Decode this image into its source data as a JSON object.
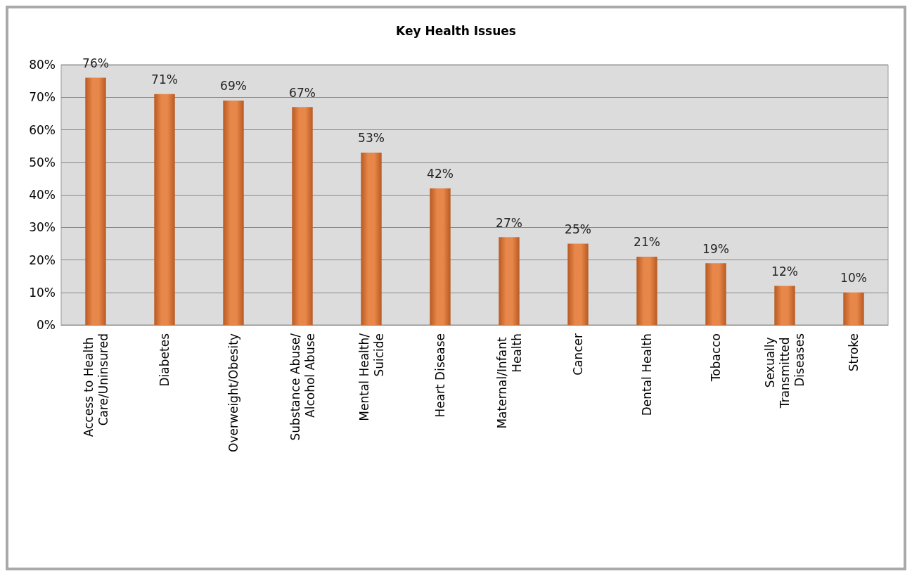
{
  "chart_data": {
    "type": "bar",
    "title": "Key Health Issues",
    "categories": [
      "Access to Health Care/Uninsured",
      "Diabetes",
      "Overweight/Obesity",
      "Substance Abuse/Alcohol Abuse",
      "Mental Health/Suicide",
      "Heart Disease",
      "Maternal/Infant Health",
      "Cancer",
      "Dental Health",
      "Tobacco",
      "Sexually Transmitted Diseases",
      "Stroke"
    ],
    "values": [
      76,
      71,
      69,
      67,
      53,
      42,
      27,
      25,
      21,
      19,
      12,
      10
    ],
    "value_labels": [
      "76%",
      "71%",
      "69%",
      "67%",
      "53%",
      "42%",
      "27%",
      "25%",
      "21%",
      "19%",
      "12%",
      "10%"
    ],
    "color": "#e8874a",
    "ylim": [
      0,
      80
    ],
    "yticks": [
      {
        "value": 0,
        "label": "0%"
      },
      {
        "value": 10,
        "label": "10%"
      },
      {
        "value": 20,
        "label": "20%"
      },
      {
        "value": 30,
        "label": "30%"
      },
      {
        "value": 40,
        "label": "40%"
      },
      {
        "value": 50,
        "label": "50%"
      },
      {
        "value": 60,
        "label": "60%"
      },
      {
        "value": 70,
        "label": "70%"
      },
      {
        "value": 80,
        "label": "80%"
      }
    ],
    "grid": "y"
  }
}
